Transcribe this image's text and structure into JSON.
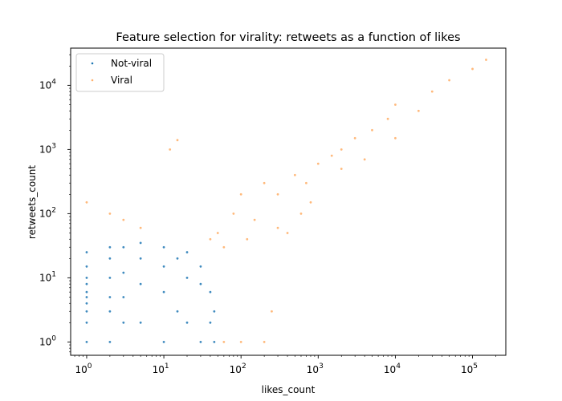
{
  "chart_data": {
    "type": "scatter",
    "title": "Feature selection for virality: retweets as a function of likes",
    "xlabel": "likes_count",
    "ylabel": "retweets_count",
    "xscale": "log",
    "yscale": "log",
    "xlim": [
      0.62,
      270000
    ],
    "ylim": [
      0.62,
      38000
    ],
    "xticks": [
      {
        "value": 1,
        "base": "10",
        "exp": "0"
      },
      {
        "value": 10,
        "base": "10",
        "exp": "1"
      },
      {
        "value": 100,
        "base": "10",
        "exp": "2"
      },
      {
        "value": 1000,
        "base": "10",
        "exp": "3"
      },
      {
        "value": 10000,
        "base": "10",
        "exp": "4"
      },
      {
        "value": 100000,
        "base": "10",
        "exp": "5"
      }
    ],
    "yticks": [
      {
        "value": 1,
        "base": "10",
        "exp": "0"
      },
      {
        "value": 10,
        "base": "10",
        "exp": "1"
      },
      {
        "value": 100,
        "base": "10",
        "exp": "2"
      },
      {
        "value": 1000,
        "base": "10",
        "exp": "3"
      },
      {
        "value": 10000,
        "base": "10",
        "exp": "4"
      }
    ],
    "grid": false,
    "legend_position": "top-left",
    "series": [
      {
        "name": "Not-viral",
        "color": "#1f77b4",
        "values": [
          [
            1,
            1
          ],
          [
            1,
            2
          ],
          [
            1,
            3
          ],
          [
            1,
            4
          ],
          [
            1,
            5
          ],
          [
            1,
            6
          ],
          [
            1,
            8
          ],
          [
            1,
            10
          ],
          [
            1,
            15
          ],
          [
            1,
            25
          ],
          [
            2,
            1
          ],
          [
            2,
            3
          ],
          [
            2,
            5
          ],
          [
            2,
            10
          ],
          [
            2,
            20
          ],
          [
            2,
            30
          ],
          [
            3,
            2
          ],
          [
            3,
            5
          ],
          [
            3,
            12
          ],
          [
            3,
            30
          ],
          [
            5,
            2
          ],
          [
            5,
            8
          ],
          [
            5,
            20
          ],
          [
            5,
            35
          ],
          [
            10,
            1
          ],
          [
            10,
            6
          ],
          [
            10,
            15
          ],
          [
            10,
            30
          ],
          [
            15,
            3
          ],
          [
            15,
            20
          ],
          [
            20,
            2
          ],
          [
            20,
            10
          ],
          [
            20,
            25
          ],
          [
            30,
            1
          ],
          [
            30,
            8
          ],
          [
            30,
            15
          ],
          [
            40,
            2
          ],
          [
            40,
            6
          ],
          [
            45,
            1
          ],
          [
            45,
            3
          ]
        ]
      },
      {
        "name": "Viral",
        "color": "#ff7f0e",
        "values": [
          [
            1,
            150
          ],
          [
            2,
            100
          ],
          [
            3,
            80
          ],
          [
            5,
            60
          ],
          [
            12,
            1000
          ],
          [
            15,
            1400
          ],
          [
            60,
            1
          ],
          [
            100,
            1
          ],
          [
            200,
            1
          ],
          [
            250,
            3
          ],
          [
            50,
            50
          ],
          [
            80,
            100
          ],
          [
            100,
            200
          ],
          [
            150,
            80
          ],
          [
            200,
            300
          ],
          [
            300,
            200
          ],
          [
            500,
            400
          ],
          [
            700,
            300
          ],
          [
            1000,
            600
          ],
          [
            1500,
            800
          ],
          [
            2000,
            1000
          ],
          [
            3000,
            1500
          ],
          [
            5000,
            2000
          ],
          [
            8000,
            3000
          ],
          [
            10000,
            1500
          ],
          [
            20000,
            4000
          ],
          [
            30000,
            8000
          ],
          [
            50000,
            12000
          ],
          [
            100000,
            18000
          ],
          [
            150000,
            25000
          ],
          [
            400,
            50
          ],
          [
            800,
            150
          ],
          [
            2000,
            500
          ],
          [
            4000,
            700
          ],
          [
            10000,
            5000
          ],
          [
            60,
            30
          ],
          [
            40,
            40
          ],
          [
            120,
            40
          ],
          [
            300,
            60
          ],
          [
            600,
            100
          ]
        ]
      }
    ]
  }
}
